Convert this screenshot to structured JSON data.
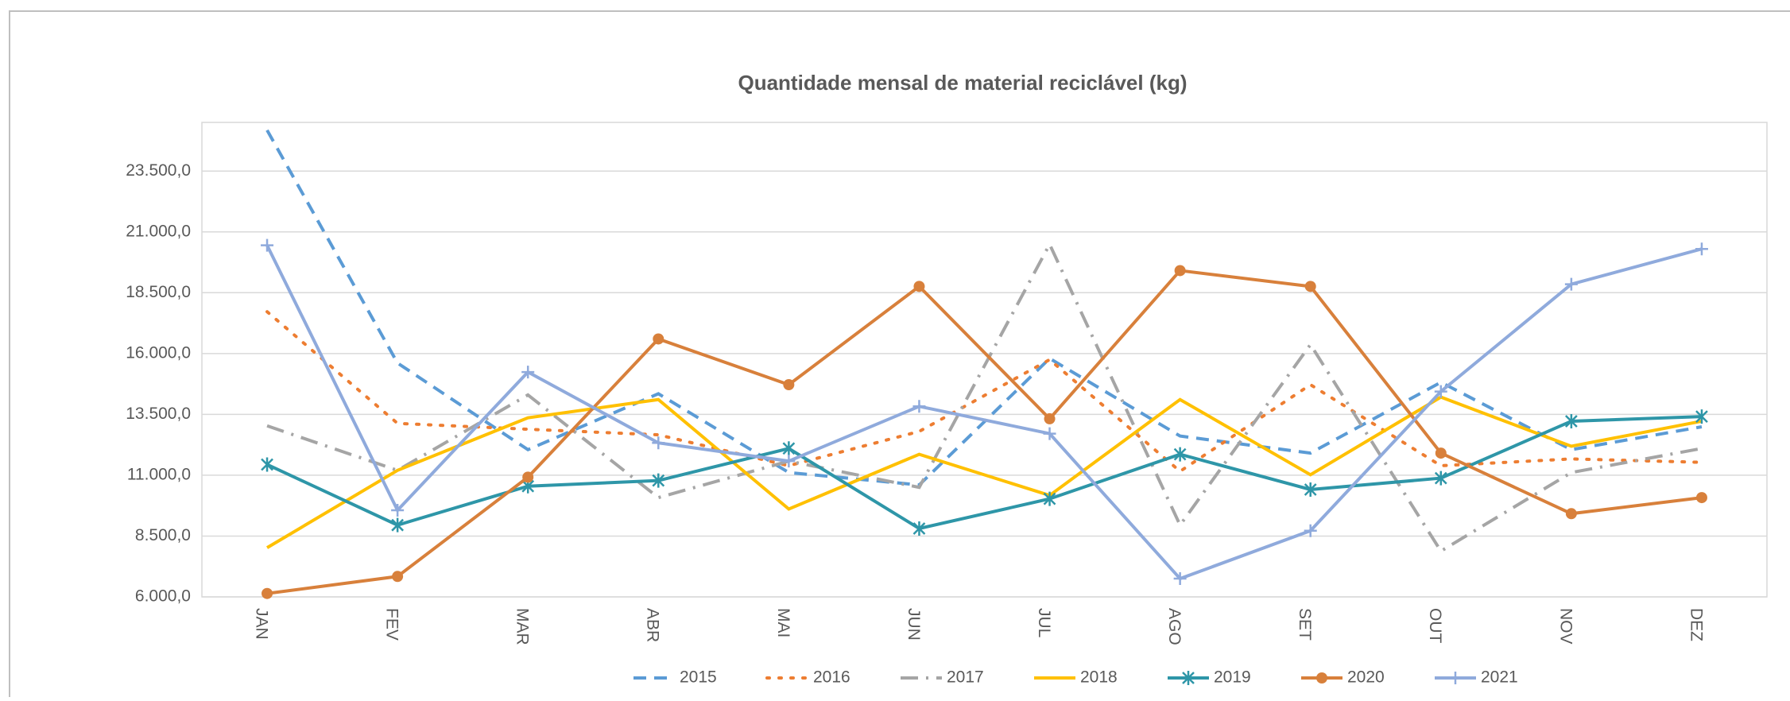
{
  "chart_data": {
    "type": "line",
    "title": "Quantidade mensal de material reciclável (kg)",
    "categories": [
      "JAN",
      "FEV",
      "MAR",
      "ABR",
      "MAI",
      "JUN",
      "JUL",
      "AGO",
      "SET",
      "OUT",
      "NOV",
      "DEZ"
    ],
    "ylim": [
      6000,
      25500
    ],
    "yticks": [
      {
        "value": 6000,
        "label": "6.000,0"
      },
      {
        "value": 8500,
        "label": "8.500,0"
      },
      {
        "value": 11000,
        "label": "11.000,0"
      },
      {
        "value": 13500,
        "label": "13.500,0"
      },
      {
        "value": 16000,
        "label": "16.000,0"
      },
      {
        "value": 18500,
        "label": "18.500,0"
      },
      {
        "value": 21000,
        "label": "21.000,0"
      },
      {
        "value": 23500,
        "label": "23.500,0"
      }
    ],
    "grid": true,
    "legend": "bottom",
    "series": [
      {
        "name": "2015",
        "color": "#5b9bd5",
        "dash": "dash",
        "values": [
          25180,
          15610,
          12050,
          14350,
          11110,
          10600,
          15800,
          12610,
          11910,
          14820,
          12050,
          12990
        ]
      },
      {
        "name": "2016",
        "color": "#ed7d31",
        "dash": "dot",
        "values": [
          17720,
          13130,
          12890,
          12660,
          11390,
          12800,
          15750,
          11160,
          14720,
          11390,
          11670,
          11530
        ]
      },
      {
        "name": "2017",
        "color": "#a5a5a5",
        "dash": "dashdot",
        "values": [
          13030,
          11200,
          14300,
          10080,
          11580,
          10500,
          20490,
          8950,
          16370,
          7880,
          11110,
          12100
        ]
      },
      {
        "name": "2018",
        "color": "#ffc000",
        "dash": "solid",
        "values": [
          8020,
          11200,
          13360,
          14110,
          9610,
          11860,
          10170,
          14110,
          11020,
          14210,
          12190,
          13220
        ]
      },
      {
        "name": "2019",
        "color": "#2e96a8",
        "dash": "solid",
        "marker": "star",
        "values": [
          11440,
          8950,
          10550,
          10780,
          12100,
          8810,
          10030,
          11860,
          10410,
          10880,
          13220,
          13410
        ]
      },
      {
        "name": "2020",
        "color": "#d8803b",
        "dash": "solid",
        "marker": "circle",
        "values": [
          6140,
          6840,
          10920,
          16600,
          14720,
          18760,
          13320,
          19410,
          18760,
          11910,
          9420,
          10080
        ]
      },
      {
        "name": "2021",
        "color": "#8faadc",
        "dash": "solid",
        "marker": "plus",
        "values": [
          20450,
          9560,
          15240,
          12330,
          11580,
          13830,
          12710,
          6750,
          8720,
          14440,
          18850,
          20300
        ]
      }
    ]
  }
}
